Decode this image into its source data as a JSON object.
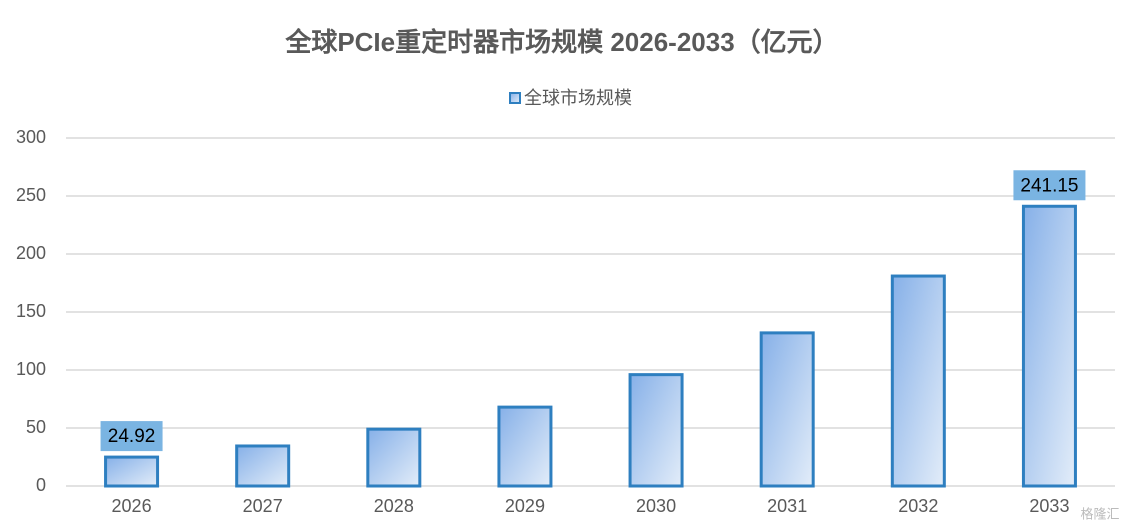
{
  "chart_data": {
    "type": "bar",
    "title": "全球PCIe重定时器市场规模 2026-2033（亿元）",
    "categories": [
      "2026",
      "2027",
      "2028",
      "2029",
      "2030",
      "2031",
      "2032",
      "2033"
    ],
    "series": [
      {
        "name": "全球市场规模",
        "color": "#2e7fc0",
        "values": [
          24.92,
          34.5,
          49,
          68,
          96,
          132,
          181,
          241.15
        ],
        "value_labels": [
          "24.92",
          null,
          null,
          null,
          null,
          null,
          null,
          "241.15"
        ]
      }
    ],
    "ylim": [
      0,
      300
    ],
    "yticks": [
      0,
      50,
      100,
      150,
      200,
      250,
      300
    ],
    "grid": true,
    "legend": "top",
    "watermark": "格隆汇"
  }
}
